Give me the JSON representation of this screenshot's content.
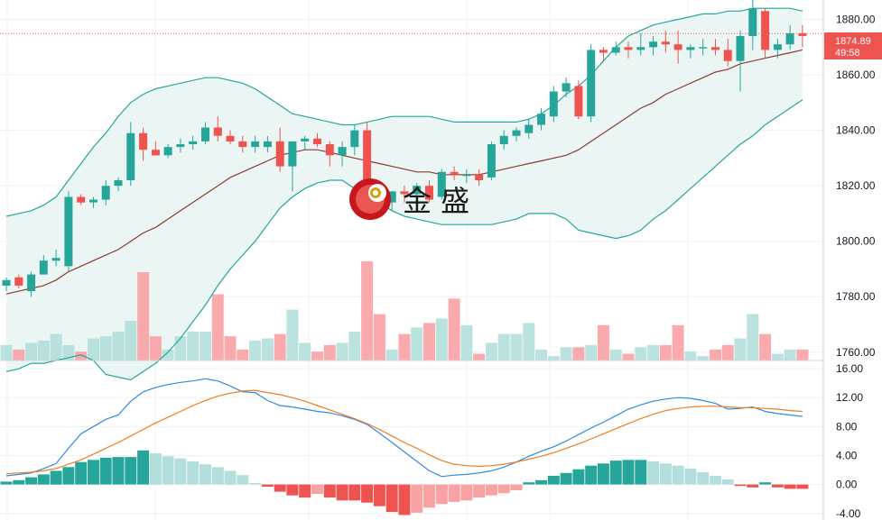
{
  "watermark": {
    "text": "金 盛"
  },
  "last_price": {
    "value": "1874.89",
    "countdown": "49:58"
  },
  "colors": {
    "up": "#26a69a",
    "down": "#ef5350",
    "up_light": "#b2dfdb",
    "down_light": "#faa1a4",
    "bb_band": "#26a69a",
    "bb_fill": "#e7f4f2",
    "bb_mid": "#8d3a2e",
    "macd": "#2f8ae5",
    "signal": "#ef7d22",
    "grid": "#eef0f3"
  },
  "chart_data": [
    {
      "type": "candlestick",
      "name": "price",
      "ylim": [
        1757,
        1887
      ],
      "y_ticks": [
        "1880.00",
        "1860.00",
        "1840.00",
        "1820.00",
        "1800.00",
        "1780.00",
        "1760.00"
      ],
      "y_tick_values": [
        1880,
        1860,
        1840,
        1820,
        1800,
        1780,
        1760
      ],
      "ohlc": [
        [
          1784,
          1787,
          1782,
          1786
        ],
        [
          1787,
          1788,
          1783,
          1784
        ],
        [
          1782,
          1789,
          1780,
          1788
        ],
        [
          1788,
          1795,
          1788,
          1793
        ],
        [
          1793,
          1797,
          1791,
          1794
        ],
        [
          1791,
          1818,
          1789,
          1816
        ],
        [
          1816,
          1817,
          1813,
          1814
        ],
        [
          1814,
          1816,
          1812,
          1815
        ],
        [
          1815,
          1822,
          1813,
          1820
        ],
        [
          1820,
          1823,
          1818,
          1822
        ],
        [
          1822,
          1843,
          1820,
          1839
        ],
        [
          1839,
          1841,
          1829,
          1833
        ],
        [
          1833,
          1836,
          1831,
          1831
        ],
        [
          1831,
          1835,
          1830,
          1834
        ],
        [
          1834,
          1837,
          1832,
          1835
        ],
        [
          1835,
          1838,
          1833,
          1836
        ],
        [
          1836,
          1843,
          1835,
          1841
        ],
        [
          1841,
          1845,
          1836,
          1838
        ],
        [
          1838,
          1840,
          1835,
          1836
        ],
        [
          1836,
          1838,
          1832,
          1834
        ],
        [
          1834,
          1838,
          1832,
          1836
        ],
        [
          1834,
          1838,
          1832,
          1836
        ],
        [
          1836,
          1841,
          1825,
          1827
        ],
        [
          1827,
          1836,
          1818,
          1836
        ],
        [
          1836,
          1838,
          1833,
          1837
        ],
        [
          1837,
          1839,
          1834,
          1835
        ],
        [
          1835,
          1836,
          1827,
          1831
        ],
        [
          1831,
          1836,
          1827,
          1834
        ],
        [
          1834,
          1842,
          1831,
          1840
        ],
        [
          1840,
          1843,
          1816,
          1817
        ],
        [
          1817,
          1820,
          1810,
          1814
        ],
        [
          1814,
          1818,
          1811,
          1818
        ],
        [
          1818,
          1820,
          1814,
          1817
        ],
        [
          1817,
          1821,
          1814,
          1820
        ],
        [
          1820,
          1822,
          1814,
          1815
        ],
        [
          1816,
          1826,
          1815,
          1825
        ],
        [
          1825,
          1827,
          1822,
          1824
        ],
        [
          1824,
          1826,
          1821,
          1824
        ],
        [
          1824,
          1826,
          1820,
          1822
        ],
        [
          1823,
          1836,
          1822,
          1835
        ],
        [
          1835,
          1840,
          1833,
          1838
        ],
        [
          1838,
          1841,
          1836,
          1840
        ],
        [
          1839,
          1844,
          1837,
          1842
        ],
        [
          1842,
          1848,
          1840,
          1846
        ],
        [
          1845,
          1856,
          1843,
          1854
        ],
        [
          1854,
          1859,
          1852,
          1857
        ],
        [
          1856,
          1858,
          1844,
          1845
        ],
        [
          1845,
          1871,
          1843,
          1869
        ],
        [
          1869,
          1870,
          1865,
          1868
        ],
        [
          1868,
          1872,
          1867,
          1870
        ],
        [
          1870,
          1872,
          1866,
          1869
        ],
        [
          1869,
          1875,
          1867,
          1870
        ],
        [
          1870,
          1874,
          1867,
          1872
        ],
        [
          1872,
          1876,
          1868,
          1871
        ],
        [
          1871,
          1876,
          1864,
          1869
        ],
        [
          1869,
          1871,
          1866,
          1870
        ],
        [
          1870,
          1873,
          1867,
          1870
        ],
        [
          1870,
          1873,
          1867,
          1869
        ],
        [
          1869,
          1873,
          1863,
          1865
        ],
        [
          1865,
          1876,
          1854,
          1874
        ],
        [
          1874,
          1890,
          1869,
          1884
        ],
        [
          1883,
          1884,
          1866,
          1869
        ],
        [
          1869,
          1873,
          1866,
          1871
        ],
        [
          1871,
          1878,
          1869,
          1875
        ],
        [
          1875,
          1878,
          1870,
          1874
        ]
      ],
      "volume": [
        7,
        5,
        8,
        9,
        12,
        7,
        4,
        10,
        11,
        13,
        18,
        40,
        11,
        5,
        11,
        13,
        13,
        30,
        11,
        5,
        9,
        10,
        12,
        23,
        8,
        4,
        7,
        8,
        13,
        45,
        21,
        5,
        12,
        15,
        17,
        19,
        28,
        16,
        3,
        8,
        12,
        12,
        17,
        5,
        2,
        6,
        6,
        7,
        16,
        5,
        3,
        6,
        7,
        7,
        16,
        4,
        2,
        5,
        7,
        10,
        21,
        12,
        3,
        5,
        5
      ],
      "bollinger_upper": [
        1809,
        1810,
        1811,
        1813,
        1816,
        1822,
        1828,
        1834,
        1839,
        1845,
        1850,
        1853,
        1855,
        1856,
        1857,
        1858,
        1859,
        1859,
        1858,
        1857,
        1855,
        1852,
        1849,
        1846,
        1845,
        1844,
        1843,
        1842,
        1842,
        1843,
        1844,
        1845,
        1845,
        1845,
        1845,
        1844,
        1843,
        1843,
        1843,
        1843,
        1843,
        1843,
        1844,
        1846,
        1849,
        1853,
        1856,
        1860,
        1865,
        1870,
        1874,
        1876,
        1878,
        1879,
        1880,
        1881,
        1882,
        1882,
        1883,
        1883,
        1884,
        1884,
        1884,
        1884,
        1883
      ],
      "bollinger_middle": [
        1781,
        1782,
        1783,
        1784,
        1786,
        1789,
        1791,
        1793,
        1795,
        1797,
        1800,
        1803,
        1805,
        1808,
        1811,
        1814,
        1817,
        1820,
        1823,
        1825,
        1827,
        1829,
        1831,
        1832,
        1833,
        1833,
        1832,
        1831,
        1830,
        1829,
        1828,
        1827,
        1826,
        1825,
        1825,
        1824,
        1824,
        1824,
        1824,
        1825,
        1826,
        1827,
        1828,
        1829,
        1830,
        1831,
        1833,
        1836,
        1839,
        1842,
        1845,
        1848,
        1850,
        1853,
        1855,
        1857,
        1859,
        1861,
        1862,
        1864,
        1865,
        1866,
        1867,
        1868,
        1869
      ],
      "bollinger_lower": [
        1753,
        1754,
        1756,
        1756,
        1757,
        1758,
        1759,
        1757,
        1752,
        1751,
        1750,
        1753,
        1756,
        1760,
        1765,
        1771,
        1777,
        1784,
        1790,
        1795,
        1800,
        1806,
        1812,
        1816,
        1819,
        1821,
        1822,
        1822,
        1819,
        1816,
        1814,
        1811,
        1809,
        1808,
        1807,
        1806,
        1806,
        1806,
        1806,
        1806,
        1807,
        1808,
        1810,
        1810,
        1810,
        1808,
        1804,
        1803,
        1802,
        1801,
        1802,
        1804,
        1808,
        1811,
        1815,
        1819,
        1823,
        1827,
        1831,
        1835,
        1838,
        1842,
        1845,
        1848,
        1851
      ]
    },
    {
      "type": "macd",
      "name": "MACD",
      "ylim": [
        -4.9,
        17.0
      ],
      "y_ticks": [
        "16.00",
        "12.00",
        "8.00",
        "4.00",
        "0.00",
        "-4.00"
      ],
      "y_tick_values": [
        16,
        12,
        8,
        4,
        0,
        -4
      ],
      "macd": [
        1.2,
        1.4,
        1.6,
        2.2,
        2.9,
        5.0,
        7.0,
        8.0,
        9.0,
        9.6,
        11.5,
        12.8,
        13.4,
        13.8,
        14.1,
        14.3,
        14.6,
        14.3,
        13.6,
        12.8,
        12.7,
        11.6,
        10.9,
        10.7,
        10.4,
        10.1,
        9.9,
        9.5,
        9.0,
        8.3,
        7.1,
        5.8,
        4.5,
        3.2,
        1.9,
        1.1,
        1.3,
        1.4,
        1.6,
        1.9,
        2.4,
        3.1,
        3.9,
        4.6,
        5.2,
        6.0,
        6.9,
        7.8,
        8.6,
        9.5,
        10.4,
        11.0,
        11.5,
        11.8,
        12.0,
        11.9,
        11.6,
        11.2,
        10.4,
        10.5,
        10.7,
        10.1,
        9.8,
        9.6,
        9.4
      ],
      "signal": [
        1.5,
        1.6,
        1.7,
        1.9,
        2.2,
        2.8,
        3.4,
        4.2,
        5.0,
        5.8,
        6.7,
        7.6,
        8.5,
        9.3,
        10.1,
        10.9,
        11.6,
        12.2,
        12.6,
        12.9,
        13.0,
        12.7,
        12.4,
        12.0,
        11.5,
        10.9,
        10.3,
        9.7,
        9.1,
        8.4,
        7.6,
        6.7,
        5.8,
        5.0,
        4.1,
        3.3,
        2.8,
        2.6,
        2.5,
        2.6,
        2.8,
        3.1,
        3.5,
        3.9,
        4.4,
        5.0,
        5.6,
        6.3,
        7.0,
        7.7,
        8.4,
        9.1,
        9.7,
        10.2,
        10.5,
        10.7,
        10.8,
        10.8,
        10.7,
        10.6,
        10.6,
        10.5,
        10.4,
        10.2,
        10.1
      ],
      "histogram": [
        0.4,
        0.6,
        1.0,
        1.4,
        1.9,
        2.4,
        3.1,
        3.4,
        3.7,
        3.8,
        3.8,
        4.7,
        4.3,
        3.9,
        3.6,
        3.2,
        2.8,
        2.4,
        1.9,
        1.3,
        0.2,
        -0.3,
        -1.0,
        -1.5,
        -1.8,
        -1.3,
        -1.8,
        -2.2,
        -2.2,
        -2.5,
        -3.0,
        -3.8,
        -4.2,
        -3.9,
        -3.2,
        -2.7,
        -2.4,
        -2.2,
        -1.8,
        -1.5,
        -1.2,
        -0.8,
        0.3,
        0.6,
        1.2,
        1.6,
        2.1,
        2.6,
        2.9,
        3.3,
        3.4,
        3.4,
        3.2,
        2.9,
        2.6,
        2.2,
        1.7,
        1.2,
        0.7,
        -0.2,
        -0.4,
        0.3,
        -0.4,
        -0.6,
        -0.6
      ]
    }
  ]
}
